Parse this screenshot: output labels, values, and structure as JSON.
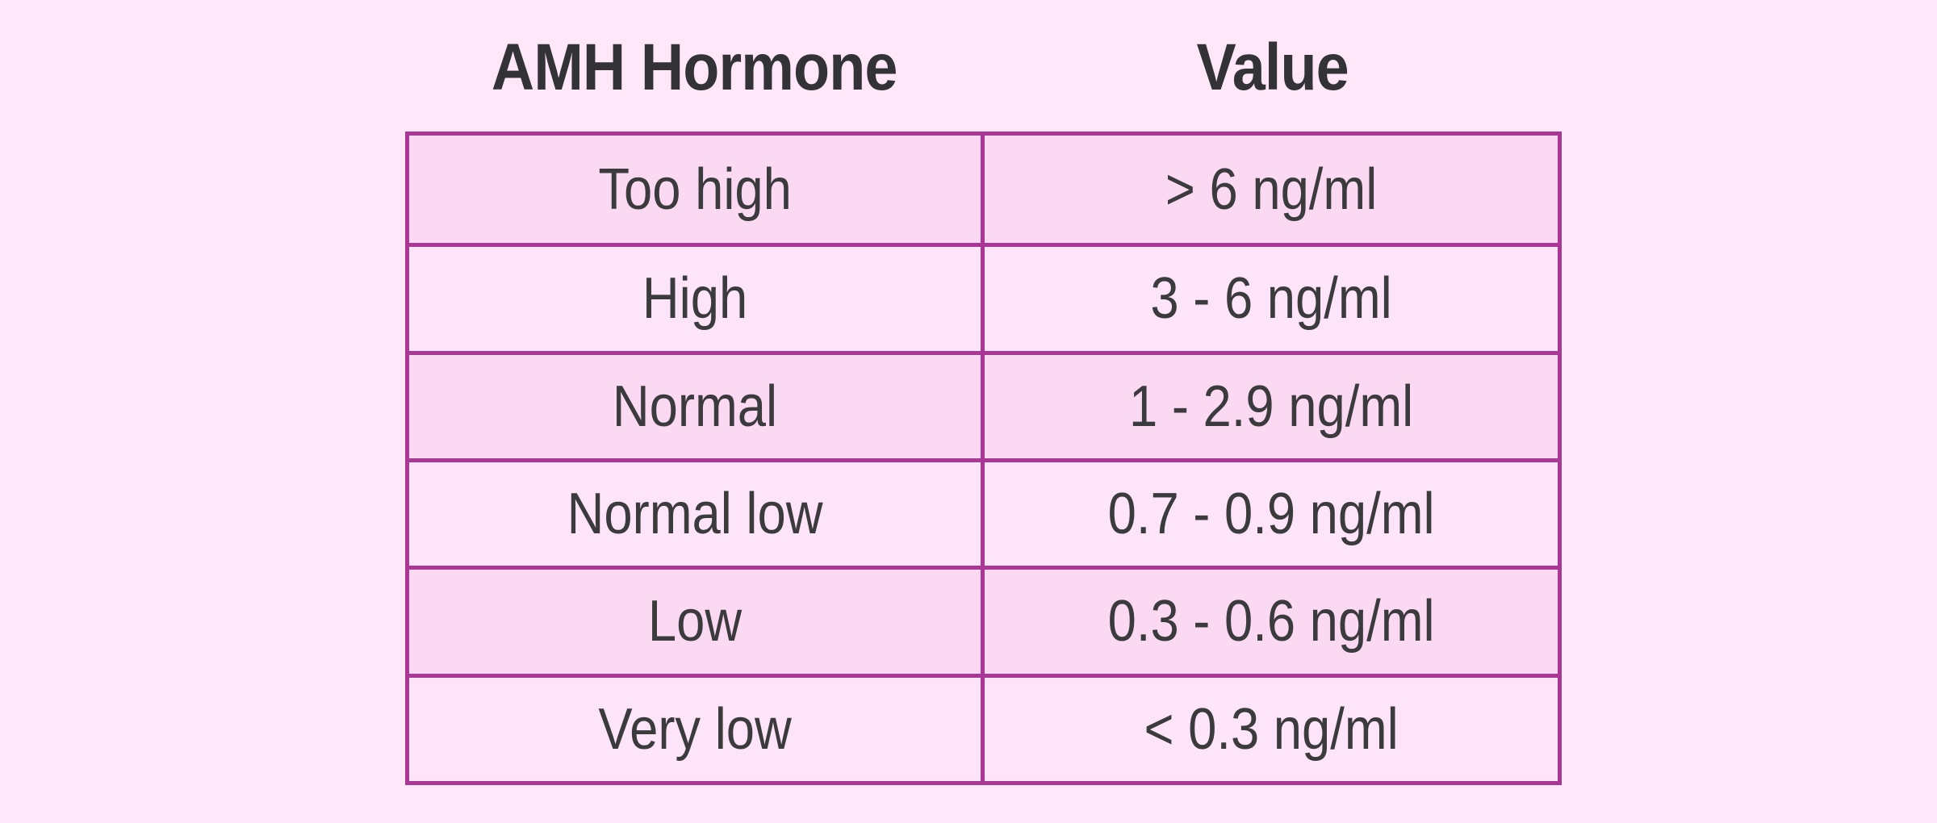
{
  "colors": {
    "background": "#ffe7fa",
    "row_dark": "#fcd9f3",
    "row_light": "#fee4f8",
    "border": "#aa3795",
    "text": "#3b3a3d",
    "header_text": "#333236"
  },
  "table": {
    "headers": [
      "AMH Hormone",
      "Value"
    ],
    "rows": [
      {
        "hormone": "Too high",
        "value": "> 6 ng/ml"
      },
      {
        "hormone": "High",
        "value": "3 - 6 ng/ml"
      },
      {
        "hormone": "Normal",
        "value": "1 - 2.9 ng/ml"
      },
      {
        "hormone": "Normal low",
        "value": "0.7 - 0.9 ng/ml"
      },
      {
        "hormone": "Low",
        "value": "0.3 - 0.6 ng/ml"
      },
      {
        "hormone": "Very low",
        "value": "< 0.3 ng/ml"
      }
    ]
  },
  "chart_data": {
    "type": "table",
    "title": "",
    "columns": [
      "AMH Hormone",
      "Value"
    ],
    "rows": [
      [
        "Too high",
        "> 6 ng/ml"
      ],
      [
        "High",
        "3 - 6 ng/ml"
      ],
      [
        "Normal",
        "1 - 2.9 ng/ml"
      ],
      [
        "Normal low",
        "0.7 - 0.9 ng/ml"
      ],
      [
        "Low",
        "0.3 - 0.6 ng/ml"
      ],
      [
        "Very low",
        "< 0.3 ng/ml"
      ]
    ],
    "layout_hints": {
      "header_position": "above-table",
      "row_striping": "odd-rows-darker",
      "text_alignment": "center"
    }
  }
}
